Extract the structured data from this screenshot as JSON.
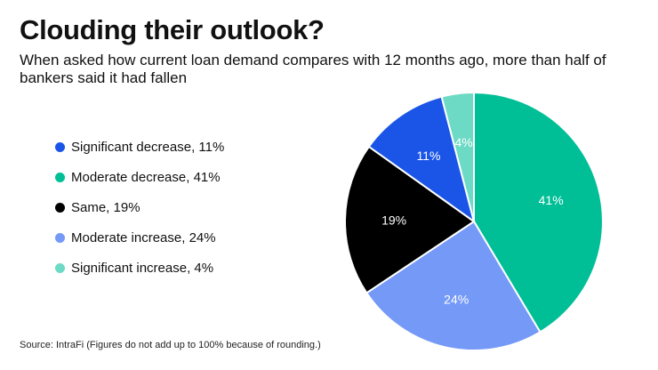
{
  "title": "Clouding their outlook?",
  "subtitle": "When asked how current loan demand compares with 12 months ago, more than half of bankers said it had fallen",
  "source": "Source: IntraFi (Figures do not add up to 100% because of rounding.)",
  "chart_data": {
    "type": "pie",
    "title": "Clouding their outlook?",
    "legend_position": "left",
    "slices": [
      {
        "label": "Significant decrease",
        "value": 11,
        "color": "#1a55e8",
        "legend_text": "Significant decrease, 11%",
        "data_label": "11%",
        "label_color": "#ffffff"
      },
      {
        "label": "Moderate decrease",
        "value": 41,
        "color": "#00bf97",
        "legend_text": "Moderate decrease, 41%",
        "data_label": "41%",
        "label_color": "#ffffff"
      },
      {
        "label": "Same",
        "value": 19,
        "color": "#000000",
        "legend_text": "Same, 19%",
        "data_label": "19%",
        "label_color": "#ffffff"
      },
      {
        "label": "Moderate increase",
        "value": 24,
        "color": "#7499f7",
        "legend_text": "Moderate increase, 24%",
        "data_label": "24%",
        "label_color": "#ffffff"
      },
      {
        "label": "Significant increase",
        "value": 4,
        "color": "#6ddac6",
        "legend_text": "Significant increase, 4%",
        "data_label": "4%",
        "label_color": "#ffffff"
      }
    ],
    "drawing_order": [
      "Moderate decrease",
      "Moderate increase",
      "Same",
      "Significant decrease",
      "Significant increase"
    ]
  }
}
